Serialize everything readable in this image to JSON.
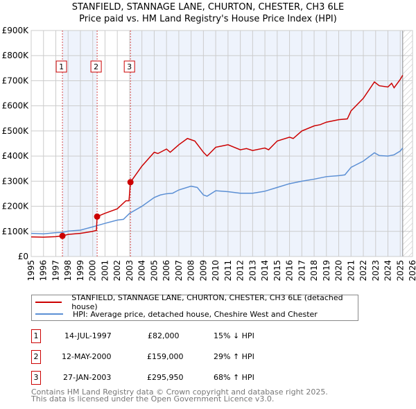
{
  "title": "STANFIELD, STANNAGE LANE, CHURTON, CHESTER, CH3 6LE",
  "subtitle": "Price paid vs. HM Land Registry's House Price Index (HPI)",
  "colors": {
    "property": "#cc0000",
    "hpi": "#5b8fd4",
    "shade": "#eef3fc",
    "grid": "#cccccc"
  },
  "chart_data": {
    "type": "line",
    "xlim": [
      1995,
      2026
    ],
    "ylim": [
      0,
      900000
    ],
    "x_ticks": [
      "1995",
      "1996",
      "1997",
      "1998",
      "1999",
      "2000",
      "2001",
      "2002",
      "2003",
      "2004",
      "2005",
      "2006",
      "2007",
      "2008",
      "2009",
      "2010",
      "2011",
      "2012",
      "2013",
      "2014",
      "2015",
      "2016",
      "2017",
      "2018",
      "2019",
      "2020",
      "2021",
      "2022",
      "2023",
      "2024",
      "2025",
      "2026"
    ],
    "y_ticks": [
      {
        "v": 0,
        "label": "£0"
      },
      {
        "v": 100000,
        "label": "£100K"
      },
      {
        "v": 200000,
        "label": "£200K"
      },
      {
        "v": 300000,
        "label": "£300K"
      },
      {
        "v": 400000,
        "label": "£400K"
      },
      {
        "v": 500000,
        "label": "£500K"
      },
      {
        "v": 600000,
        "label": "£600K"
      },
      {
        "v": 700000,
        "label": "£700K"
      },
      {
        "v": 800000,
        "label": "£800K"
      },
      {
        "v": 900000,
        "label": "£900K"
      }
    ],
    "data_end": 2025.2,
    "series": [
      {
        "name": "STANFIELD, STANNAGE LANE, CHURTON, CHESTER, CH3 6LE (detached house)",
        "color": "#cc0000",
        "x": [
          1995,
          1996,
          1997,
          1997.54,
          1998,
          1999,
          2000,
          2000.3,
          2000.36,
          2001,
          2002,
          2002.7,
          2002.95,
          2003.07,
          2004,
          2005,
          2005.3,
          2006,
          2006.3,
          2007,
          2007.7,
          2008.3,
          2009,
          2009.3,
          2010,
          2010.5,
          2011,
          2012,
          2012.5,
          2013,
          2014,
          2014.3,
          2015,
          2016,
          2016.3,
          2017,
          2018,
          2018.5,
          2019,
          2020,
          2020.7,
          2021,
          2022,
          2022.9,
          2023.3,
          2024,
          2024.3,
          2024.5,
          2025,
          2025.2
        ],
        "y": [
          78000,
          77000,
          79000,
          82000,
          88000,
          92000,
          100000,
          104000,
          159000,
          172000,
          190000,
          222000,
          222000,
          295950,
          360000,
          415000,
          410000,
          428000,
          415000,
          445000,
          470000,
          460000,
          415000,
          400000,
          435000,
          440000,
          445000,
          425000,
          430000,
          422000,
          432000,
          425000,
          460000,
          475000,
          470000,
          500000,
          520000,
          525000,
          535000,
          545000,
          548000,
          580000,
          630000,
          695000,
          680000,
          675000,
          690000,
          672000,
          705000,
          722000
        ]
      },
      {
        "name": "HPI: Average price, detached house, Cheshire West and Chester",
        "color": "#5b8fd4",
        "x": [
          1995,
          1996,
          1997,
          1997.54,
          1998,
          1999,
          2000,
          2000.36,
          2001,
          2002,
          2002.5,
          2003,
          2004,
          2005,
          2005.5,
          2006,
          2006.5,
          2007,
          2008,
          2008.5,
          2009,
          2009.3,
          2010,
          2011,
          2012,
          2013,
          2014,
          2015,
          2016,
          2017,
          2018,
          2019,
          2020,
          2020.5,
          2021,
          2022,
          2022.9,
          2023.3,
          2024,
          2024.5,
          2025,
          2025.2
        ],
        "y": [
          92000,
          90000,
          95000,
          96000,
          101000,
          105000,
          118000,
          123000,
          132000,
          145000,
          148000,
          172000,
          200000,
          235000,
          245000,
          250000,
          252000,
          265000,
          280000,
          275000,
          245000,
          240000,
          262000,
          258000,
          252000,
          252000,
          260000,
          275000,
          290000,
          300000,
          308000,
          318000,
          322000,
          325000,
          355000,
          380000,
          413000,
          402000,
          400000,
          405000,
          420000,
          432000
        ]
      }
    ],
    "sales": [
      {
        "n": "1",
        "x": 1997.54,
        "y": 82000
      },
      {
        "n": "2",
        "x": 2000.36,
        "y": 159000
      },
      {
        "n": "3",
        "x": 2003.07,
        "y": 295950
      }
    ]
  },
  "legend": [
    "STANFIELD, STANNAGE LANE, CHURTON, CHESTER, CH3 6LE (detached house)",
    "HPI: Average price, detached house, Cheshire West and Chester"
  ],
  "transactions": [
    {
      "n": "1",
      "date": "14-JUL-1997",
      "price": "£82,000",
      "hpi": "15% ↓ HPI"
    },
    {
      "n": "2",
      "date": "12-MAY-2000",
      "price": "£159,000",
      "hpi": "29% ↑ HPI"
    },
    {
      "n": "3",
      "date": "27-JAN-2003",
      "price": "£295,950",
      "hpi": "68% ↑ HPI"
    }
  ],
  "footer": [
    "Contains HM Land Registry data © Crown copyright and database right 2025.",
    "This data is licensed under the Open Government Licence v3.0."
  ]
}
